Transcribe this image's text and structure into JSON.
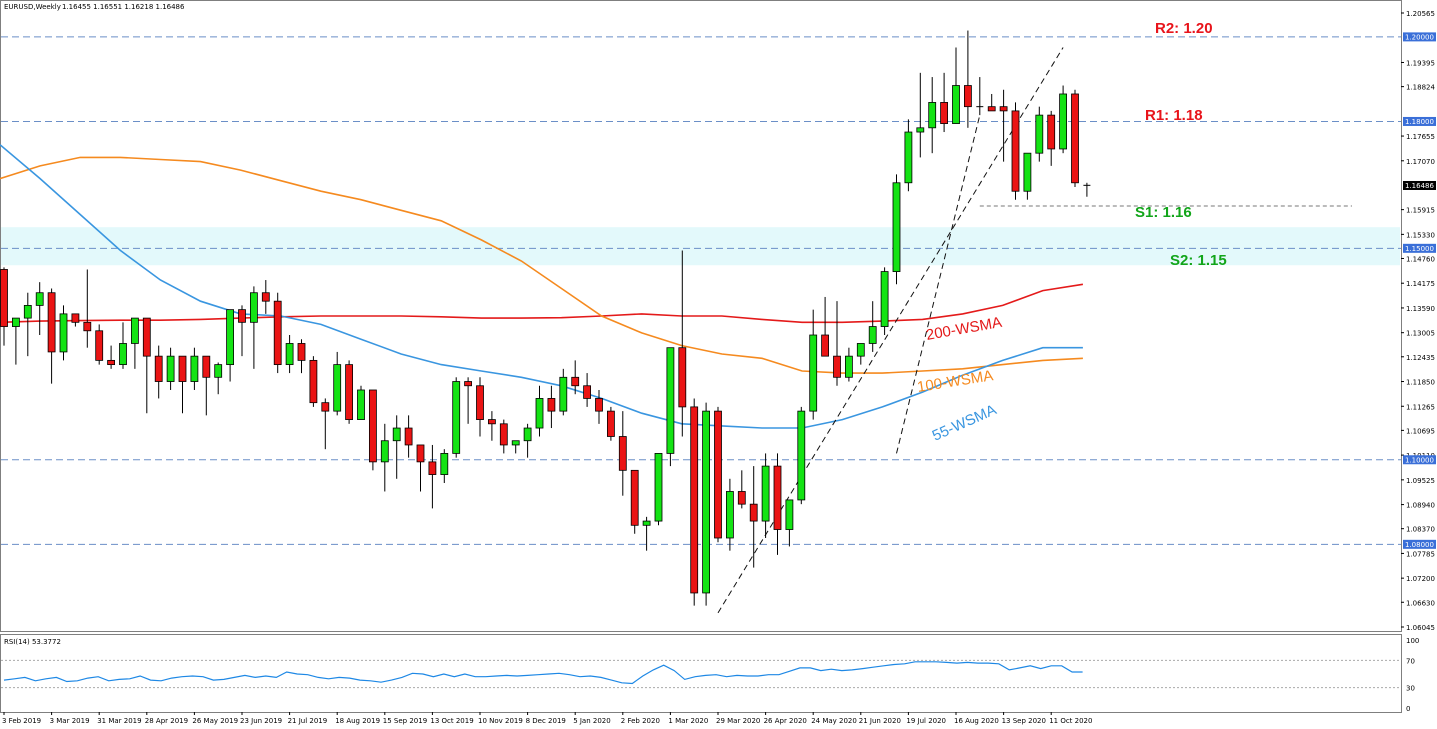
{
  "header": {
    "symbol_text": "EURUSD,Weekly",
    "ohlc_text": "1.16455 1.16551 1.16218 1.16486"
  },
  "rsi": {
    "label": "RSI(14) 53.3772",
    "ticks": [
      "100",
      "70",
      "30",
      "0"
    ],
    "levels": [
      70,
      30
    ],
    "values": [
      41,
      43,
      45,
      40,
      43,
      45,
      39,
      40,
      44,
      46,
      40,
      42,
      43,
      47,
      41,
      40,
      44,
      46,
      47,
      46,
      41,
      42,
      45,
      48,
      45,
      47,
      45,
      53,
      50,
      49,
      45,
      43,
      45,
      44,
      41,
      40,
      38,
      41,
      45,
      51,
      50,
      46,
      50,
      46,
      50,
      46,
      46,
      47,
      48,
      47,
      48,
      49,
      50,
      51,
      49,
      46,
      47,
      45,
      41,
      37,
      36,
      47,
      56,
      63,
      55,
      42,
      46,
      48,
      49,
      46,
      48,
      47,
      47,
      49,
      49,
      54,
      59,
      59,
      55,
      57,
      55,
      56,
      58,
      60,
      62,
      64,
      65,
      68,
      68,
      68,
      67,
      66,
      67,
      66,
      66,
      65,
      56,
      59,
      62,
      58,
      62,
      62,
      53,
      53
    ]
  },
  "price_axis": {
    "ticks": [
      "1.20565",
      "1.19395",
      "1.18824",
      "1.17655",
      "1.17070",
      "1.15915",
      "1.15330",
      "1.14760",
      "1.14175",
      "1.13590",
      "1.13005",
      "1.12435",
      "1.11850",
      "1.11265",
      "1.10695",
      "1.10110",
      "1.09525",
      "1.08940",
      "1.08370",
      "1.07785",
      "1.07200",
      "1.06630",
      "1.06045"
    ],
    "current_price": "1.16486"
  },
  "date_axis": {
    "labels": [
      "3 Feb 2019",
      "3 Mar 2019",
      "31 Mar 2019",
      "28 Apr 2019",
      "26 May 2019",
      "23 Jun 2019",
      "21 Jul 2019",
      "18 Aug 2019",
      "15 Sep 2019",
      "13 Oct 2019",
      "10 Nov 2019",
      "8 Dec 2019",
      "5 Jan 2020",
      "2 Feb 2020",
      "1 Mar 2020",
      "29 Mar 2020",
      "26 Apr 2020",
      "24 May 2020",
      "21 Jun 2020",
      "19 Jul 2020",
      "16 Aug 2020",
      "13 Sep 2020",
      "11 Oct 2020"
    ]
  },
  "levels": [
    {
      "name": "R2",
      "label": "R2: 1.20",
      "value": 1.2,
      "tag": "1.20000",
      "color": "#e8141b"
    },
    {
      "name": "R1",
      "label": "R1: 1.18",
      "value": 1.18,
      "tag": "1.18000",
      "color": "#e8141b"
    },
    {
      "name": "S1",
      "label": "S1: 1.16",
      "value": 1.16,
      "tag": "",
      "color": "#12a51a"
    },
    {
      "name": "S2",
      "label": "S2: 1.15",
      "value": 1.15,
      "tag": "1.15000",
      "color": "#12a51a"
    },
    {
      "name": "L110",
      "label": "",
      "value": 1.1,
      "tag": "1.10000",
      "color": ""
    },
    {
      "name": "L108",
      "label": "",
      "value": 1.08,
      "tag": "1.08000",
      "color": ""
    }
  ],
  "moving_average_labels": {
    "wsma200": "200-WSMA",
    "wsma100": "100-WSMA",
    "wsma55": "55-WSMA"
  },
  "colors": {
    "bull": "#14e314",
    "bear": "#ea1414",
    "ma200": "#e41a1a",
    "ma100": "#f58a1f",
    "ma55": "#3a96e0",
    "zone": "#e3f9fb",
    "tag_bg": "#3a6fd8"
  },
  "chart_data": {
    "type": "candlestick",
    "symbol": "EURUSD",
    "timeframe": "Weekly",
    "ylim": [
      1.06045,
      1.20565
    ],
    "support_zone": [
      1.146,
      1.155
    ],
    "candles": [
      [
        1.145,
        1.1455,
        1.127,
        1.1315
      ],
      [
        1.1315,
        1.1335,
        1.1225,
        1.1335
      ],
      [
        1.1335,
        1.1395,
        1.1245,
        1.1365
      ],
      [
        1.1365,
        1.142,
        1.1295,
        1.1395
      ],
      [
        1.1395,
        1.1405,
        1.118,
        1.1255
      ],
      [
        1.1255,
        1.1365,
        1.1235,
        1.1345
      ],
      [
        1.1345,
        1.1345,
        1.1315,
        1.1325
      ],
      [
        1.1325,
        1.145,
        1.1265,
        1.1305
      ],
      [
        1.1305,
        1.132,
        1.1225,
        1.1235
      ],
      [
        1.1235,
        1.127,
        1.1215,
        1.1225
      ],
      [
        1.1225,
        1.1325,
        1.1215,
        1.1275
      ],
      [
        1.1275,
        1.1335,
        1.1215,
        1.1335
      ],
      [
        1.1335,
        1.1335,
        1.111,
        1.1245
      ],
      [
        1.1245,
        1.127,
        1.1145,
        1.1185
      ],
      [
        1.1185,
        1.1265,
        1.1165,
        1.1245
      ],
      [
        1.1245,
        1.1245,
        1.111,
        1.1185
      ],
      [
        1.1185,
        1.1265,
        1.1165,
        1.1245
      ],
      [
        1.1245,
        1.1245,
        1.1105,
        1.1195
      ],
      [
        1.1195,
        1.123,
        1.1155,
        1.1225
      ],
      [
        1.1225,
        1.1355,
        1.1185,
        1.1355
      ],
      [
        1.1355,
        1.1365,
        1.1245,
        1.1325
      ],
      [
        1.1325,
        1.141,
        1.1215,
        1.1395
      ],
      [
        1.1395,
        1.1425,
        1.1345,
        1.1375
      ],
      [
        1.1375,
        1.1395,
        1.1205,
        1.1225
      ],
      [
        1.1225,
        1.1295,
        1.1205,
        1.1275
      ],
      [
        1.1275,
        1.1285,
        1.1205,
        1.1235
      ],
      [
        1.1235,
        1.1245,
        1.1125,
        1.1135
      ],
      [
        1.1135,
        1.1145,
        1.1025,
        1.1115
      ],
      [
        1.1115,
        1.1255,
        1.1105,
        1.1225
      ],
      [
        1.1225,
        1.1235,
        1.1085,
        1.1095
      ],
      [
        1.1095,
        1.1175,
        1.1095,
        1.1165
      ],
      [
        1.1165,
        1.1165,
        1.0975,
        1.0995
      ],
      [
        1.0995,
        1.1085,
        1.0925,
        1.1045
      ],
      [
        1.1045,
        1.1105,
        1.0955,
        1.1075
      ],
      [
        1.1075,
        1.1105,
        1.1005,
        1.1035
      ],
      [
        1.1035,
        1.1035,
        1.0925,
        1.0995
      ],
      [
        1.0995,
        1.1035,
        1.0885,
        1.0965
      ],
      [
        1.0965,
        1.1025,
        1.0945,
        1.1015
      ],
      [
        1.1015,
        1.1195,
        1.1005,
        1.1185
      ],
      [
        1.1185,
        1.1195,
        1.1085,
        1.1175
      ],
      [
        1.1175,
        1.1195,
        1.1055,
        1.1095
      ],
      [
        1.1095,
        1.1115,
        1.1045,
        1.1085
      ],
      [
        1.1085,
        1.1095,
        1.1015,
        1.1035
      ],
      [
        1.1035,
        1.1045,
        1.1015,
        1.1045
      ],
      [
        1.1045,
        1.1085,
        1.1005,
        1.1075
      ],
      [
        1.1075,
        1.1175,
        1.1055,
        1.1145
      ],
      [
        1.1145,
        1.1175,
        1.1075,
        1.1115
      ],
      [
        1.1115,
        1.1215,
        1.1105,
        1.1195
      ],
      [
        1.1195,
        1.1235,
        1.1155,
        1.1175
      ],
      [
        1.1175,
        1.1205,
        1.1125,
        1.1145
      ],
      [
        1.1145,
        1.1165,
        1.1085,
        1.1115
      ],
      [
        1.1115,
        1.1125,
        1.1045,
        1.1055
      ],
      [
        1.1055,
        1.1115,
        1.0915,
        1.0975
      ],
      [
        1.0975,
        1.0975,
        1.0825,
        1.0845
      ],
      [
        1.0845,
        1.0865,
        1.0785,
        1.0855
      ],
      [
        1.0855,
        1.1015,
        1.0845,
        1.1015
      ],
      [
        1.1015,
        1.1265,
        1.0985,
        1.1265
      ],
      [
        1.1265,
        1.1495,
        1.1055,
        1.1125
      ],
      [
        1.1125,
        1.1145,
        1.0655,
        1.0685
      ],
      [
        1.0685,
        1.1135,
        1.0655,
        1.1115
      ],
      [
        1.1115,
        1.1125,
        1.0805,
        1.0815
      ],
      [
        1.0815,
        1.0955,
        1.0785,
        1.0925
      ],
      [
        1.0925,
        1.0975,
        1.0885,
        1.0895
      ],
      [
        1.0895,
        1.0985,
        1.0745,
        1.0855
      ],
      [
        1.0855,
        1.1015,
        1.0815,
        1.0985
      ],
      [
        1.0985,
        1.1015,
        1.0775,
        1.0835
      ],
      [
        1.0835,
        1.0905,
        1.0795,
        1.0905
      ],
      [
        1.0905,
        1.1125,
        1.0895,
        1.1115
      ],
      [
        1.1115,
        1.1355,
        1.1095,
        1.1295
      ],
      [
        1.1295,
        1.1385,
        1.1245,
        1.1245
      ],
      [
        1.1245,
        1.1375,
        1.1175,
        1.1195
      ],
      [
        1.1195,
        1.1265,
        1.1185,
        1.1245
      ],
      [
        1.1245,
        1.1275,
        1.1225,
        1.1275
      ],
      [
        1.1275,
        1.1375,
        1.1255,
        1.1315
      ],
      [
        1.1315,
        1.1455,
        1.1295,
        1.1445
      ],
      [
        1.1445,
        1.1675,
        1.1415,
        1.1655
      ],
      [
        1.1655,
        1.1805,
        1.1635,
        1.1775
      ],
      [
        1.1775,
        1.1915,
        1.1715,
        1.1785
      ],
      [
        1.1785,
        1.1905,
        1.1725,
        1.1845
      ],
      [
        1.1845,
        1.1915,
        1.1775,
        1.1795
      ],
      [
        1.1795,
        1.1975,
        1.1795,
        1.1885
      ],
      [
        1.1885,
        1.2015,
        1.1785,
        1.1835
      ],
      [
        1.1835,
        1.1905,
        1.1815,
        1.1835
      ],
      [
        1.1835,
        1.1865,
        1.1825,
        1.1825
      ],
      [
        1.1835,
        1.1875,
        1.1705,
        1.1825
      ],
      [
        1.1825,
        1.1845,
        1.1615,
        1.1635
      ],
      [
        1.1635,
        1.1725,
        1.1615,
        1.1725
      ],
      [
        1.1725,
        1.1835,
        1.1705,
        1.1815
      ],
      [
        1.1815,
        1.1825,
        1.1695,
        1.1735
      ],
      [
        1.1735,
        1.1885,
        1.1725,
        1.1865
      ],
      [
        1.1865,
        1.1875,
        1.1645,
        1.1655
      ],
      [
        1.1646,
        1.1655,
        1.1622,
        1.1649
      ]
    ],
    "ma200": [
      1.1325,
      1.1328,
      1.1329,
      1.133,
      1.133,
      1.1332,
      1.1335,
      1.1338,
      1.134,
      1.134,
      1.134,
      1.1338,
      1.1335,
      1.1335,
      1.1336,
      1.134,
      1.1345,
      1.134,
      1.134,
      1.1332,
      1.1325,
      1.1325,
      1.1328,
      1.1332,
      1.1345,
      1.1365,
      1.14,
      1.1415
    ],
    "ma100": [
      1.1665,
      1.1695,
      1.1715,
      1.1715,
      1.171,
      1.1705,
      1.1685,
      1.166,
      1.1635,
      1.1615,
      1.159,
      1.1565,
      1.152,
      1.147,
      1.1405,
      1.134,
      1.13,
      1.127,
      1.125,
      1.124,
      1.121,
      1.1205,
      1.1205,
      1.121,
      1.1215,
      1.1225,
      1.1235,
      1.124
    ],
    "ma55": [
      1.1745,
      1.1665,
      1.158,
      1.1495,
      1.1425,
      1.1375,
      1.1345,
      1.134,
      1.132,
      1.1285,
      1.125,
      1.1225,
      1.121,
      1.1195,
      1.1175,
      1.1145,
      1.111,
      1.1085,
      1.108,
      1.1075,
      1.1075,
      1.1095,
      1.1125,
      1.116,
      1.12,
      1.1235,
      1.1265
    ],
    "trendlines": [
      {
        "from": [
          60,
          1.0638
        ],
        "to": [
          89,
          1.1975
        ]
      },
      {
        "from": [
          75,
          1.1015
        ],
        "to": [
          82,
          1.1815
        ]
      }
    ],
    "dashed_level_start_index": 82
  }
}
